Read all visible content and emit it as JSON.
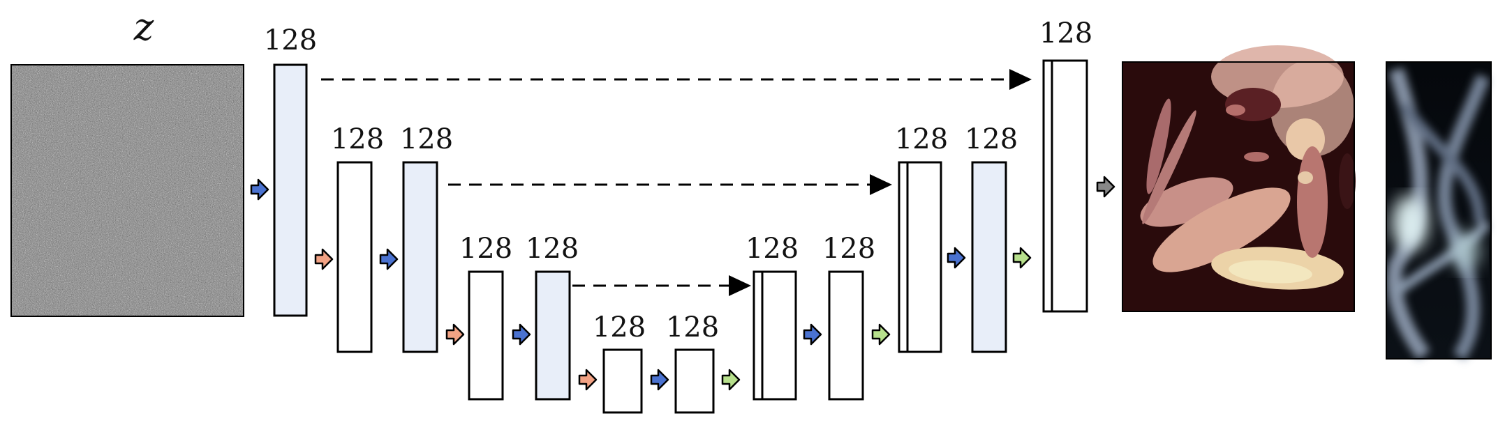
{
  "input": {
    "label": "z"
  },
  "blocks": [
    {
      "label": "128"
    },
    {
      "label": "128"
    },
    {
      "label": "128"
    },
    {
      "label": "128"
    },
    {
      "label": "128"
    },
    {
      "label": "128"
    },
    {
      "label": "128"
    },
    {
      "label": "128"
    },
    {
      "label": "128"
    },
    {
      "label": "128"
    },
    {
      "label": "128"
    },
    {
      "label": "128"
    }
  ],
  "colors": {
    "feature_fill": "#e8eef9",
    "plain_fill": "#ffffff",
    "arrow_blue": "#4a72d0",
    "arrow_orange": "#f2a284",
    "arrow_green": "#b7e08c",
    "arrow_gray": "#888888"
  }
}
